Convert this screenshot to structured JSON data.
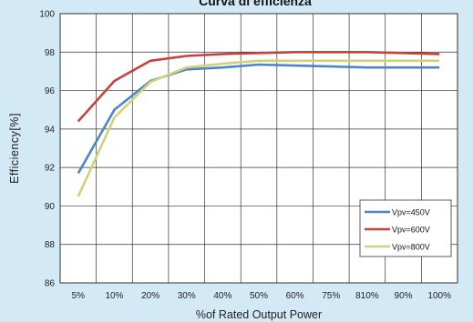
{
  "chart_data": {
    "type": "line",
    "title": "Curva di efficienza",
    "xlabel": "%of Rated Output Power",
    "ylabel": "Efficiency[%]",
    "categories": [
      "5%",
      "10%",
      "20%",
      "30%",
      "40%",
      "50%",
      "60%",
      "75%",
      "810%",
      "90%",
      "100%"
    ],
    "ylim": [
      86,
      100
    ],
    "yticks": [
      86,
      88,
      90,
      92,
      94,
      96,
      98,
      100
    ],
    "grid": true,
    "legend_position": "bottom-right",
    "series": [
      {
        "name": "Vpv=450V",
        "color": "#4a86c5",
        "values": [
          91.7,
          95.0,
          96.5,
          97.1,
          97.2,
          97.35,
          97.3,
          97.25,
          97.2,
          97.2,
          97.2
        ]
      },
      {
        "name": "Vpv=600V",
        "color": "#c8413c",
        "values": [
          94.4,
          96.5,
          97.55,
          97.8,
          97.9,
          97.95,
          98.0,
          98.0,
          98.0,
          97.95,
          97.9
        ]
      },
      {
        "name": "Vpv=800V",
        "color": "#d3d07a",
        "values": [
          90.5,
          94.6,
          96.45,
          97.2,
          97.4,
          97.55,
          97.55,
          97.55,
          97.55,
          97.55,
          97.55
        ]
      }
    ]
  }
}
